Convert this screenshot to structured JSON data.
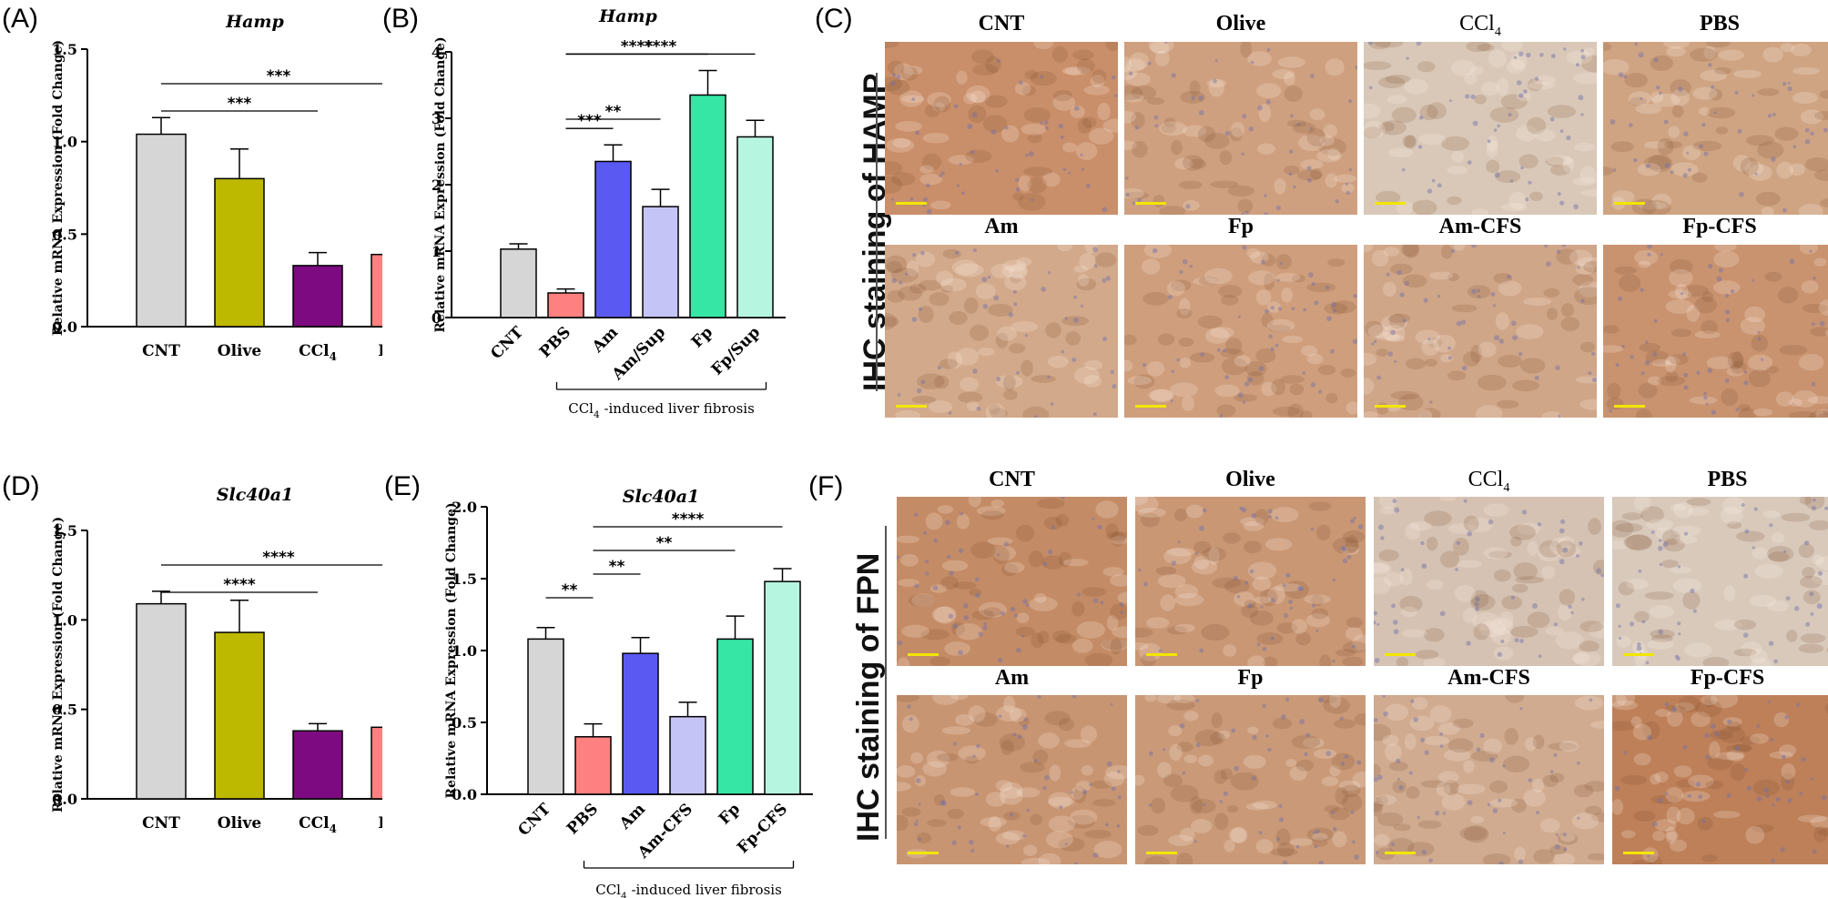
{
  "panel_letters": [
    "(A)",
    "(B)",
    "(C)",
    "(D)",
    "(E)",
    "(F)"
  ],
  "chart_data": [
    {
      "id": "A",
      "type": "bar",
      "title": "Hamp",
      "ylabel": "Relative mRNA Expression (Fold Change)",
      "categories": [
        "CNT",
        "Olive",
        "CCl4",
        "PBS"
      ],
      "values": [
        1.04,
        0.8,
        0.33,
        0.39
      ],
      "errors": [
        0.09,
        0.16,
        0.07,
        0.05
      ],
      "colors": [
        "#d6d6d6",
        "#bdb800",
        "#7d0a80",
        "#ff8080"
      ],
      "ylim": [
        0,
        1.5
      ],
      "yticks": [
        "0.0",
        "0.5",
        "1.0",
        "1.5"
      ],
      "tick_values": [
        0,
        0.5,
        1.0,
        1.5
      ],
      "significance": [
        {
          "from": 0,
          "to": 2,
          "label": "***"
        },
        {
          "from": 0,
          "to": 3,
          "label": "***"
        }
      ]
    },
    {
      "id": "B",
      "type": "bar",
      "title": "Hamp",
      "ylabel": "Relative mRNA Expression (Fold Change)",
      "categories": [
        "CNT",
        "PBS",
        "Am",
        "Am/Sup",
        "Fp",
        "Fp/Sup"
      ],
      "values": [
        1.03,
        0.37,
        2.35,
        1.67,
        3.35,
        2.72
      ],
      "errors": [
        0.08,
        0.06,
        0.25,
        0.26,
        0.37,
        0.25
      ],
      "colors": [
        "#d6d6d6",
        "#ff8080",
        "#5a5af2",
        "#c4c4f6",
        "#36e6a4",
        "#b6f6e0"
      ],
      "ylim": [
        0,
        4
      ],
      "yticks": [
        "0",
        "1",
        "2",
        "3",
        "4"
      ],
      "tick_values": [
        0,
        1,
        2,
        3,
        4
      ],
      "group_label": "CCl4 -induced liver fibrosis",
      "group_span": [
        1,
        5
      ],
      "significance": [
        {
          "from": 1,
          "to": 2,
          "label": "***"
        },
        {
          "from": 1,
          "to": 3,
          "label": "**"
        },
        {
          "from": 1,
          "to": 4,
          "label": "****"
        },
        {
          "from": 1,
          "to": 5,
          "label": "****"
        }
      ]
    },
    {
      "id": "D",
      "type": "bar",
      "title": "Slc40a1",
      "ylabel": "Relative mRNA Expression (Fold Change)",
      "categories": [
        "CNT",
        "Olive",
        "CCl4",
        "PBS"
      ],
      "values": [
        1.09,
        0.93,
        0.38,
        0.4
      ],
      "errors": [
        0.07,
        0.18,
        0.04,
        0.08
      ],
      "colors": [
        "#d6d6d6",
        "#bdb800",
        "#7d0a80",
        "#ff8080"
      ],
      "ylim": [
        0,
        1.5
      ],
      "yticks": [
        "0.0",
        "0.5",
        "1.0",
        "1.5"
      ],
      "tick_values": [
        0,
        0.5,
        1.0,
        1.5
      ],
      "significance": [
        {
          "from": 0,
          "to": 2,
          "label": "****"
        },
        {
          "from": 0,
          "to": 3,
          "label": "****"
        }
      ]
    },
    {
      "id": "E",
      "type": "bar",
      "title": "Slc40a1",
      "ylabel": "Relative mRNA Expression (Fold Change)",
      "categories": [
        "CNT",
        "PBS",
        "Am",
        "Am-CFS",
        "Fp",
        "Fp-CFS"
      ],
      "values": [
        1.08,
        0.4,
        0.98,
        0.54,
        1.08,
        1.48
      ],
      "errors": [
        0.08,
        0.09,
        0.11,
        0.1,
        0.16,
        0.09
      ],
      "colors": [
        "#d6d6d6",
        "#ff8080",
        "#5a5af2",
        "#c4c4f6",
        "#36e6a4",
        "#b6f6e0"
      ],
      "ylim": [
        0,
        2.0
      ],
      "yticks": [
        "0.0",
        "0.5",
        "1.0",
        "1.5",
        "2.0"
      ],
      "tick_values": [
        0,
        0.5,
        1.0,
        1.5,
        2.0
      ],
      "group_label": "CCl4 -induced liver fibrosis",
      "group_span": [
        1,
        5
      ],
      "significance": [
        {
          "from": 0,
          "to": 1,
          "label": "**"
        },
        {
          "from": 1,
          "to": 2,
          "label": "**"
        },
        {
          "from": 1,
          "to": 4,
          "label": "**"
        },
        {
          "from": 1,
          "to": 5,
          "label": "****"
        }
      ]
    }
  ],
  "ihc_panels": [
    {
      "id": "C",
      "side_label": "IHC staining of HAMP",
      "labels": [
        "CNT",
        "Olive",
        "CCl4",
        "PBS",
        "Am",
        "Fp",
        "Am-CFS",
        "Fp-CFS"
      ],
      "tissue_colors": [
        "#c98f6a",
        "#cfa07f",
        "#d9c8b8",
        "#cfa483",
        "#d2a98a",
        "#cf9e7c",
        "#d0a688",
        "#c9936f"
      ]
    },
    {
      "id": "F",
      "side_label": "IHC staining of FPN",
      "labels": [
        "CNT",
        "Olive",
        "CCl4",
        "PBS",
        "Am",
        "Fp",
        "Am-CFS",
        "Fp-CFS"
      ],
      "tissue_colors": [
        "#c48c66",
        "#c99774",
        "#d5c2b2",
        "#d8c9bb",
        "#c89572",
        "#ca9a78",
        "#d0ab90",
        "#bd8059"
      ]
    }
  ],
  "colors": {
    "scale_bar": "#f2e600",
    "axis": "#000000"
  }
}
